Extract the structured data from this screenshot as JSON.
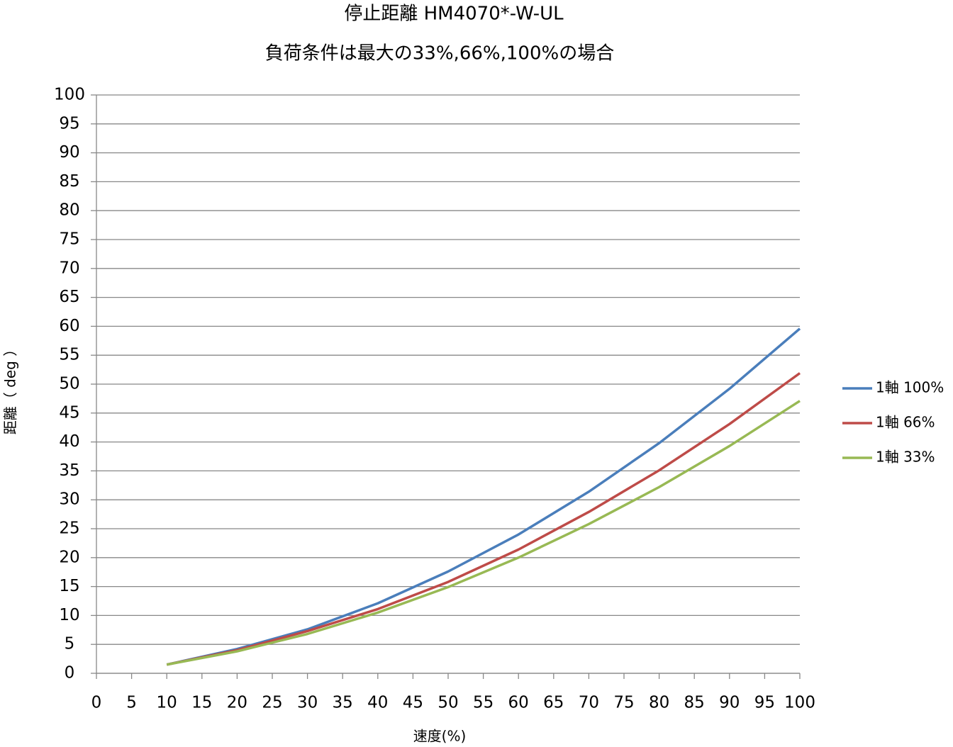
{
  "chart_data": {
    "type": "line",
    "title": "停止距離 HM4070*-W-UL",
    "subtitle": "負荷条件は最大の33%,66%,100%の場合",
    "x_label": "速度(%)",
    "y_label": "距離（ deg ）",
    "x": [
      10,
      20,
      30,
      40,
      50,
      60,
      70,
      80,
      90,
      100
    ],
    "series": [
      {
        "name": "1軸 100%",
        "color": "#4a7ebb",
        "values": [
          1.5,
          4.2,
          7.6,
          12.1,
          17.6,
          24.0,
          31.4,
          39.8,
          49.2,
          59.6
        ]
      },
      {
        "name": "1軸 66%",
        "color": "#be4b48",
        "values": [
          1.5,
          4.0,
          7.3,
          11.1,
          15.8,
          21.4,
          27.9,
          35.1,
          43.1,
          51.9
        ]
      },
      {
        "name": "1軸 33%",
        "color": "#98b954",
        "values": [
          1.5,
          3.8,
          6.8,
          10.5,
          14.9,
          20.0,
          25.8,
          32.2,
          39.3,
          47.1
        ]
      }
    ],
    "xlim": [
      0,
      100
    ],
    "xticks": [
      0,
      5,
      10,
      15,
      20,
      25,
      30,
      35,
      40,
      45,
      50,
      55,
      60,
      65,
      70,
      75,
      80,
      85,
      90,
      95,
      100
    ],
    "ylim": [
      0,
      100
    ],
    "yticks": [
      0,
      5,
      10,
      15,
      20,
      25,
      30,
      35,
      40,
      45,
      50,
      55,
      60,
      65,
      70,
      75,
      80,
      85,
      90,
      95,
      100
    ],
    "grid": true,
    "legend": "right"
  }
}
